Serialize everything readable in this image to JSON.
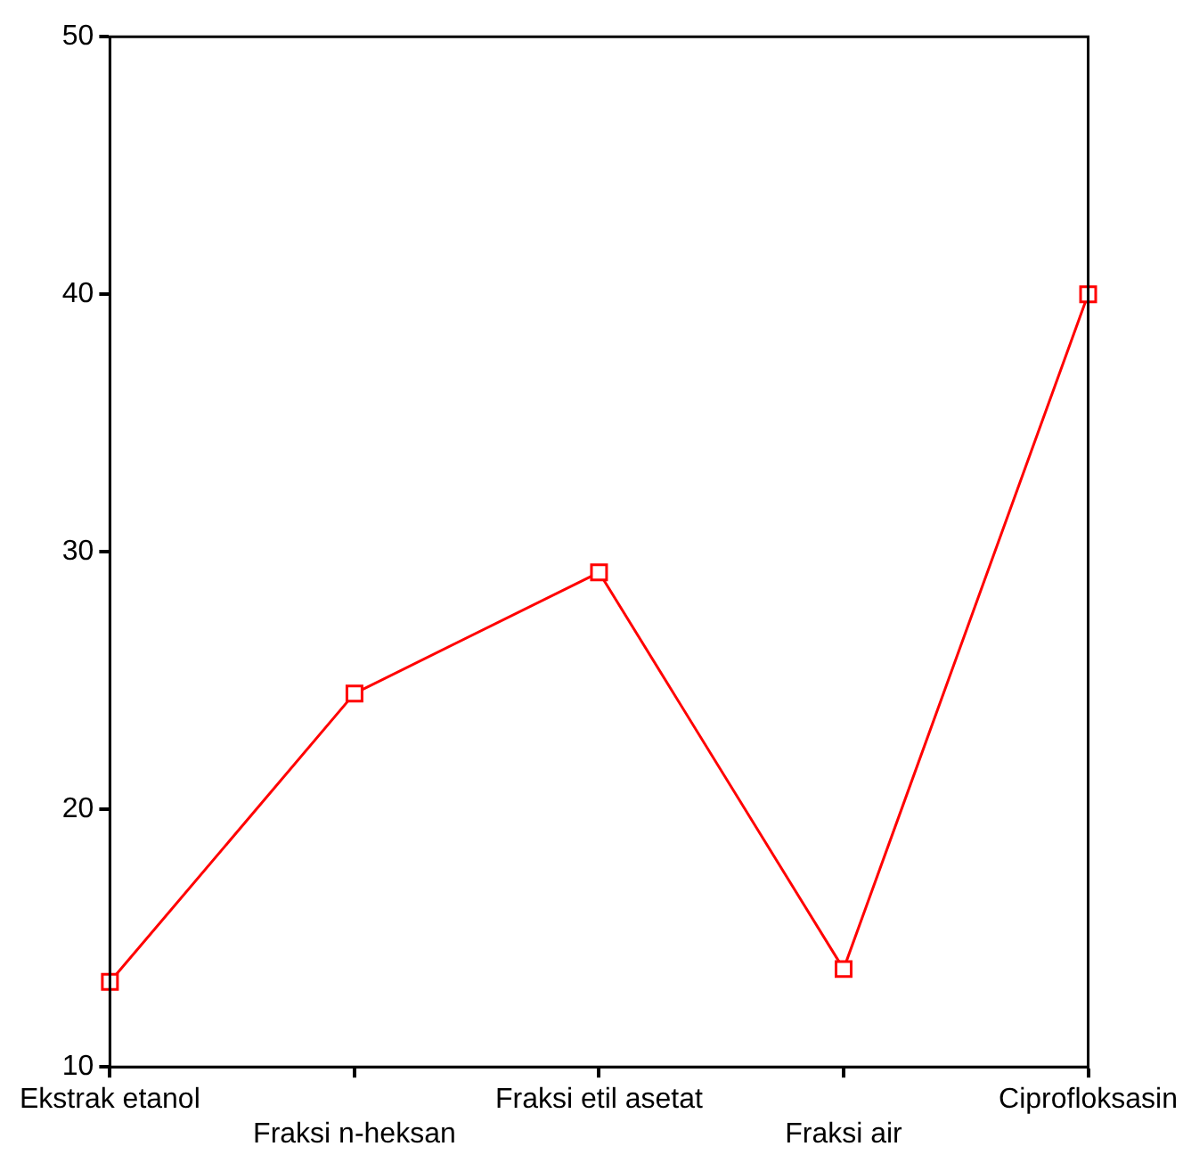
{
  "chart_data": {
    "type": "line",
    "categories": [
      "Ekstrak etanol",
      "Fraksi n-heksan",
      "Fraksi etil asetat",
      "Fraksi air",
      "Ciprofloksasin"
    ],
    "series": [
      {
        "color": "#ff0000",
        "values": [
          13.3,
          24.5,
          29.2,
          13.8,
          40
        ]
      }
    ],
    "ylim": [
      10,
      50
    ],
    "yticks": [
      10,
      20,
      30,
      40,
      50
    ],
    "grid": false,
    "legend": false,
    "marker": "square",
    "line_style": "solid"
  }
}
